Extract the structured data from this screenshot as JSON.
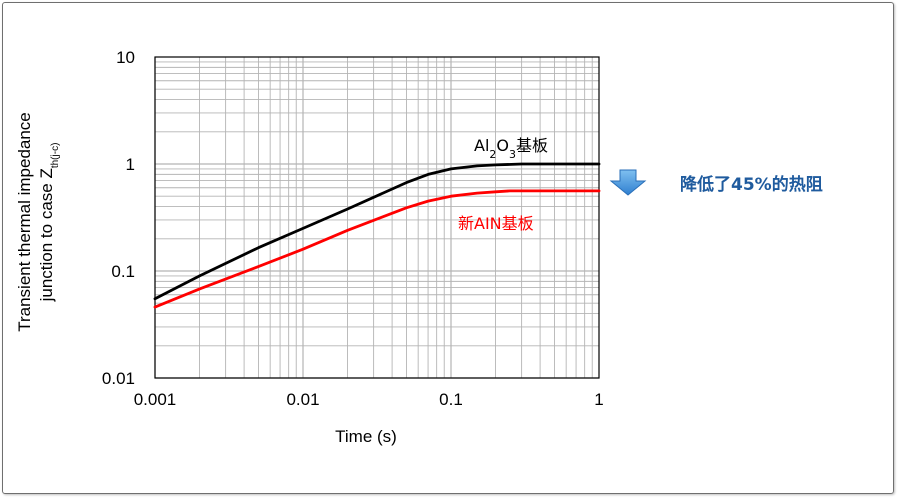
{
  "chart_data": {
    "type": "line",
    "x_scale": "log",
    "y_scale": "log",
    "xlim": [
      0.001,
      1
    ],
    "ylim": [
      0.01,
      10
    ],
    "grid": true,
    "xlabel": "Time (s)",
    "ylabel_line1": "Transient thermal impedance",
    "ylabel_line2": "junction to case Z",
    "ylabel_subscript": "th(j-c)",
    "x_ticks": [
      {
        "value": 0.001,
        "label": "0.001"
      },
      {
        "value": 0.01,
        "label": "0.01"
      },
      {
        "value": 0.1,
        "label": "0.1"
      },
      {
        "value": 1,
        "label": "1"
      }
    ],
    "y_ticks": [
      {
        "value": 0.01,
        "label": "0.01"
      },
      {
        "value": 0.1,
        "label": "0.1"
      },
      {
        "value": 1,
        "label": "1"
      },
      {
        "value": 10,
        "label": "10"
      }
    ],
    "series": [
      {
        "name": "Al2O3基板",
        "label_main": "Al",
        "label_sub1": "2",
        "label_mid": "O",
        "label_sub2": "3",
        "label_tail": "基板",
        "color": "#000000",
        "x": [
          0.001,
          0.002,
          0.005,
          0.01,
          0.02,
          0.05,
          0.07,
          0.1,
          0.15,
          0.2,
          0.3,
          0.5,
          1
        ],
        "y": [
          0.055,
          0.09,
          0.165,
          0.25,
          0.38,
          0.67,
          0.8,
          0.9,
          0.96,
          0.98,
          1.0,
          1.0,
          1.0
        ]
      },
      {
        "name": "新AIN基板",
        "color": "#ff0000",
        "x": [
          0.001,
          0.002,
          0.005,
          0.01,
          0.02,
          0.05,
          0.07,
          0.1,
          0.15,
          0.2,
          0.25,
          0.5,
          1
        ],
        "y": [
          0.046,
          0.068,
          0.11,
          0.16,
          0.24,
          0.39,
          0.45,
          0.5,
          0.535,
          0.55,
          0.56,
          0.56,
          0.56
        ]
      }
    ],
    "annotation": {
      "text": "降低了45%的热阻",
      "arrow_color": "#3d8fd8"
    }
  }
}
